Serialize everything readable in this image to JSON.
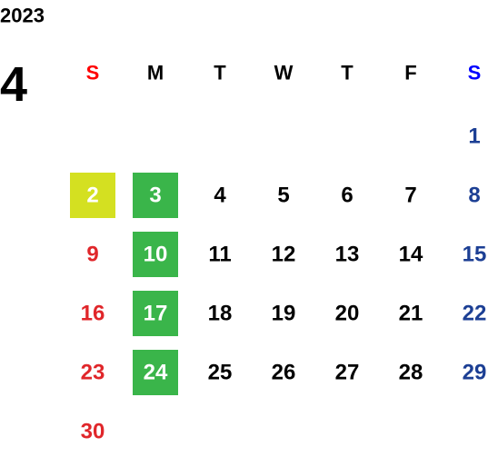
{
  "year": "2023",
  "month": "4",
  "weekdays": [
    "S",
    "M",
    "T",
    "W",
    "T",
    "F",
    "S"
  ],
  "colors": {
    "sunday_header": "#ff0000",
    "saturday_header": "#0000ff",
    "sunday": "#e0262a",
    "saturday": "#1c3f94",
    "weekday": "#000000"
  },
  "weeks": [
    [
      null,
      null,
      null,
      null,
      null,
      null,
      1
    ],
    [
      {
        "day": 2,
        "highlight": "#d4e021"
      },
      {
        "day": 3,
        "highlight": "#3ab54a"
      },
      4,
      5,
      6,
      7,
      8
    ],
    [
      9,
      {
        "day": 10,
        "highlight": "#3ab54a"
      },
      11,
      12,
      13,
      14,
      15
    ],
    [
      16,
      {
        "day": 17,
        "highlight": "#3ab54a"
      },
      18,
      19,
      20,
      21,
      22
    ],
    [
      23,
      {
        "day": 24,
        "highlight": "#3ab54a"
      },
      25,
      26,
      27,
      28,
      29
    ],
    [
      30,
      null,
      null,
      null,
      null,
      null,
      null
    ]
  ]
}
